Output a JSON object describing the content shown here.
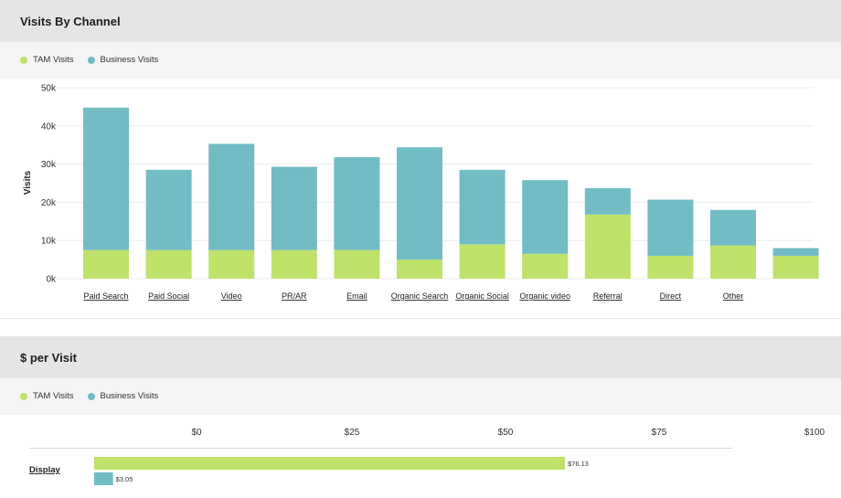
{
  "colors": {
    "tam": "#bee26a",
    "business": "#72bcc5",
    "header_bg": "#e4e5e7",
    "legend_bg": "#f5f5f6"
  },
  "visits_panel": {
    "title": "Visits By Channel",
    "legend": [
      "TAM Visits",
      "Business Visits"
    ]
  },
  "cost_panel": {
    "title": "$ per Visit",
    "legend": [
      "TAM Visits",
      "Business Visits"
    ]
  },
  "chart_data": [
    {
      "type": "bar",
      "stacked": true,
      "title": "Visits By Channel",
      "xlabel": "",
      "ylabel": "Visits",
      "ylim": [
        0,
        50000
      ],
      "yticks": [
        "0k",
        "10k",
        "20k",
        "30k",
        "40k",
        "50k"
      ],
      "categories": [
        "Paid Search",
        "Paid Social",
        "Video",
        "PR/AR",
        "Email",
        "Organic Search",
        "Organic Social",
        "Organic video",
        "Referral",
        "Direct",
        "Other",
        ""
      ],
      "series": [
        {
          "name": "TAM Visits",
          "values": [
            7500,
            7500,
            7500,
            7500,
            7500,
            5000,
            9000,
            6500,
            16800,
            6000,
            8700,
            6000
          ]
        },
        {
          "name": "Business Visits",
          "values": [
            37300,
            21000,
            27800,
            21800,
            24300,
            29400,
            19500,
            19300,
            6900,
            14700,
            9300,
            2000
          ]
        }
      ],
      "grid": true,
      "legend_position": "top-left"
    },
    {
      "type": "bar",
      "orientation": "horizontal",
      "title": "$ per Visit",
      "xlim": [
        0,
        100
      ],
      "xticks": [
        "$0",
        "$25",
        "$50",
        "$75",
        "$100"
      ],
      "categories": [
        "Display"
      ],
      "series": [
        {
          "name": "TAM Visits",
          "values": [
            76.13
          ],
          "labels": [
            "$76.13"
          ]
        },
        {
          "name": "Business Visits",
          "values": [
            3.05
          ],
          "labels": [
            "$3.05"
          ]
        }
      ],
      "legend_position": "top-left"
    }
  ]
}
